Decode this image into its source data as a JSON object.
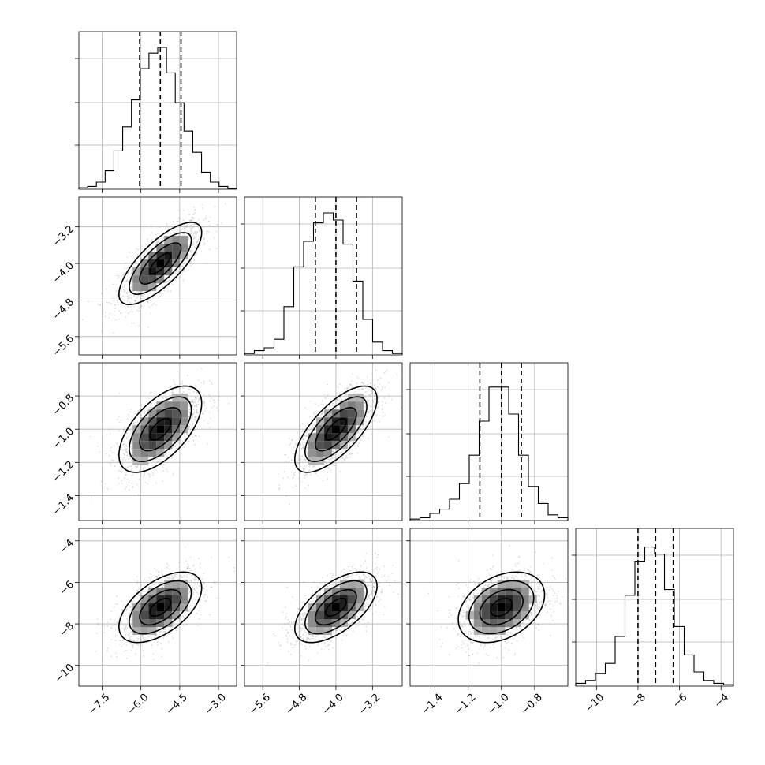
{
  "chart_data": {
    "type": "corner",
    "grid": true,
    "parameters": [
      {
        "ticks": [
          -7.5,
          -6.0,
          -4.5,
          -3.0
        ],
        "tick_labels": [
          "−7.5",
          "−6.0",
          "−4.5",
          "−3.0"
        ],
        "range": [
          -8.4,
          -2.3
        ],
        "median": -5.25,
        "q16": -6.05,
        "q84": -4.45,
        "hist_peak_norm": 1.0,
        "hist": [
          0.01,
          0.02,
          0.05,
          0.13,
          0.27,
          0.44,
          0.63,
          0.85,
          0.96,
          1.0,
          0.82,
          0.61,
          0.41,
          0.26,
          0.12,
          0.05,
          0.02,
          0.005
        ]
      },
      {
        "ticks": [
          -5.6,
          -4.8,
          -4.0,
          -3.2
        ],
        "tick_labels": [
          "−5.6",
          "−4.8",
          "−4.0",
          "−3.2"
        ],
        "range": [
          -6.0,
          -2.55
        ],
        "median": -4.0,
        "q16": -4.45,
        "q84": -3.55,
        "hist": [
          0.01,
          0.03,
          0.05,
          0.11,
          0.34,
          0.62,
          0.8,
          0.93,
          1.0,
          0.95,
          0.78,
          0.52,
          0.25,
          0.09,
          0.03,
          0.01
        ]
      },
      {
        "ticks": [
          -1.4,
          -1.2,
          -1.0,
          -0.8
        ],
        "tick_labels": [
          "−1.4",
          "−1.2",
          "−1.0",
          "−0.8"
        ],
        "range": [
          -1.55,
          -0.6
        ],
        "median": -1.0,
        "q16": -1.13,
        "q84": -0.88,
        "hist": [
          0.01,
          0.02,
          0.05,
          0.08,
          0.15,
          0.26,
          0.46,
          0.7,
          0.94,
          0.94,
          0.75,
          0.46,
          0.24,
          0.12,
          0.04,
          0.02
        ]
      },
      {
        "ticks": [
          -10,
          -8,
          -6,
          -4
        ],
        "tick_labels": [
          "−10",
          "−8",
          "−6",
          "−4"
        ],
        "range": [
          -11.0,
          -3.4
        ],
        "median": -7.15,
        "q16": -8.0,
        "q84": -6.3,
        "hist": [
          0.02,
          0.04,
          0.09,
          0.16,
          0.35,
          0.64,
          0.88,
          0.98,
          0.93,
          0.68,
          0.42,
          0.22,
          0.1,
          0.04,
          0.02,
          0.01
        ]
      }
    ],
    "y_tick_rows": [
      {
        "row": 1,
        "param": 1,
        "ticks": [
          -5.6,
          -4.8,
          -4.0,
          -3.2
        ],
        "tick_labels": [
          "−5.6",
          "−4.8",
          "−4.0",
          "−3.2"
        ]
      },
      {
        "row": 2,
        "param": 2,
        "ticks": [
          -1.4,
          -1.2,
          -1.0,
          -0.8
        ],
        "tick_labels": [
          "−1.4",
          "−1.2",
          "−1.0",
          "−0.8"
        ]
      },
      {
        "row": 3,
        "param": 3,
        "ticks": [
          -10,
          -8,
          -6,
          -4
        ],
        "tick_labels": [
          "−10",
          "−8",
          "−6",
          "−4"
        ]
      }
    ],
    "pair_shapes": [
      {
        "row": 1,
        "col": 0,
        "cx": -5.25,
        "cy": -4.0,
        "sx": 0.8,
        "sy": 0.45,
        "rho": 0.75
      },
      {
        "row": 2,
        "col": 0,
        "cx": -5.25,
        "cy": -1.0,
        "sx": 0.8,
        "sy": 0.13,
        "rho": 0.6
      },
      {
        "row": 2,
        "col": 1,
        "cx": -4.0,
        "cy": -1.0,
        "sx": 0.45,
        "sy": 0.13,
        "rho": 0.7
      },
      {
        "row": 3,
        "col": 0,
        "cx": -5.25,
        "cy": -7.2,
        "sx": 0.8,
        "sy": 0.85,
        "rho": 0.55
      },
      {
        "row": 3,
        "col": 1,
        "cx": -4.0,
        "cy": -7.2,
        "sx": 0.45,
        "sy": 0.85,
        "rho": 0.6
      },
      {
        "row": 3,
        "col": 2,
        "cx": -1.0,
        "cy": -7.2,
        "sx": 0.13,
        "sy": 0.85,
        "rho": 0.35
      }
    ],
    "contour_levels_sigma": [
      0.5,
      1.0,
      1.5,
      2.0
    ]
  }
}
